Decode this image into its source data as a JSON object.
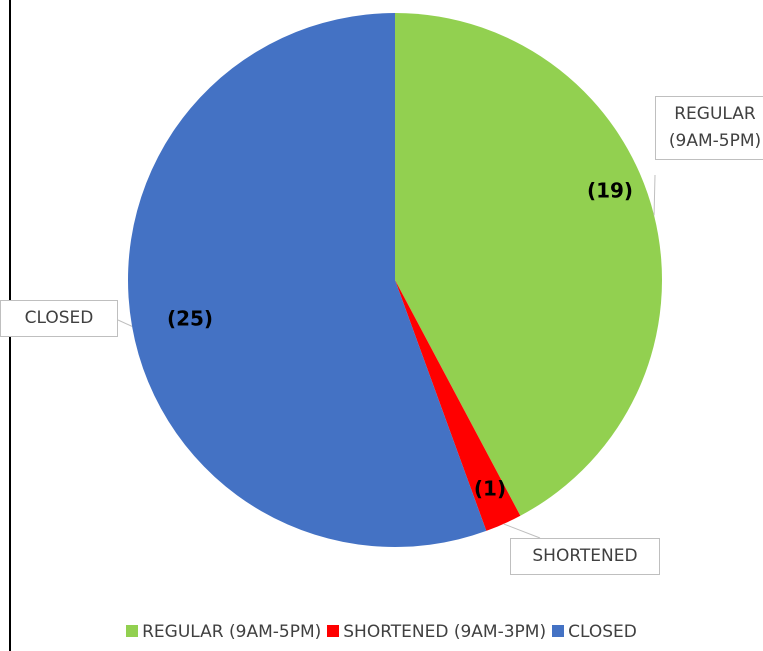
{
  "chart_data": {
    "type": "pie",
    "categories": [
      "REGULAR (9AM-5PM)",
      "SHORTENED (9AM-3PM)",
      "CLOSED"
    ],
    "values": [
      19,
      1,
      25
    ],
    "value_labels": [
      "(19)",
      "(1)",
      "(25)"
    ],
    "callout_labels": [
      "REGULAR (9AM-5PM)",
      "SHORTENED",
      "CLOSED"
    ],
    "colors": [
      "#92d050",
      "#ff0000",
      "#4472c4"
    ],
    "legend": "bottom"
  }
}
